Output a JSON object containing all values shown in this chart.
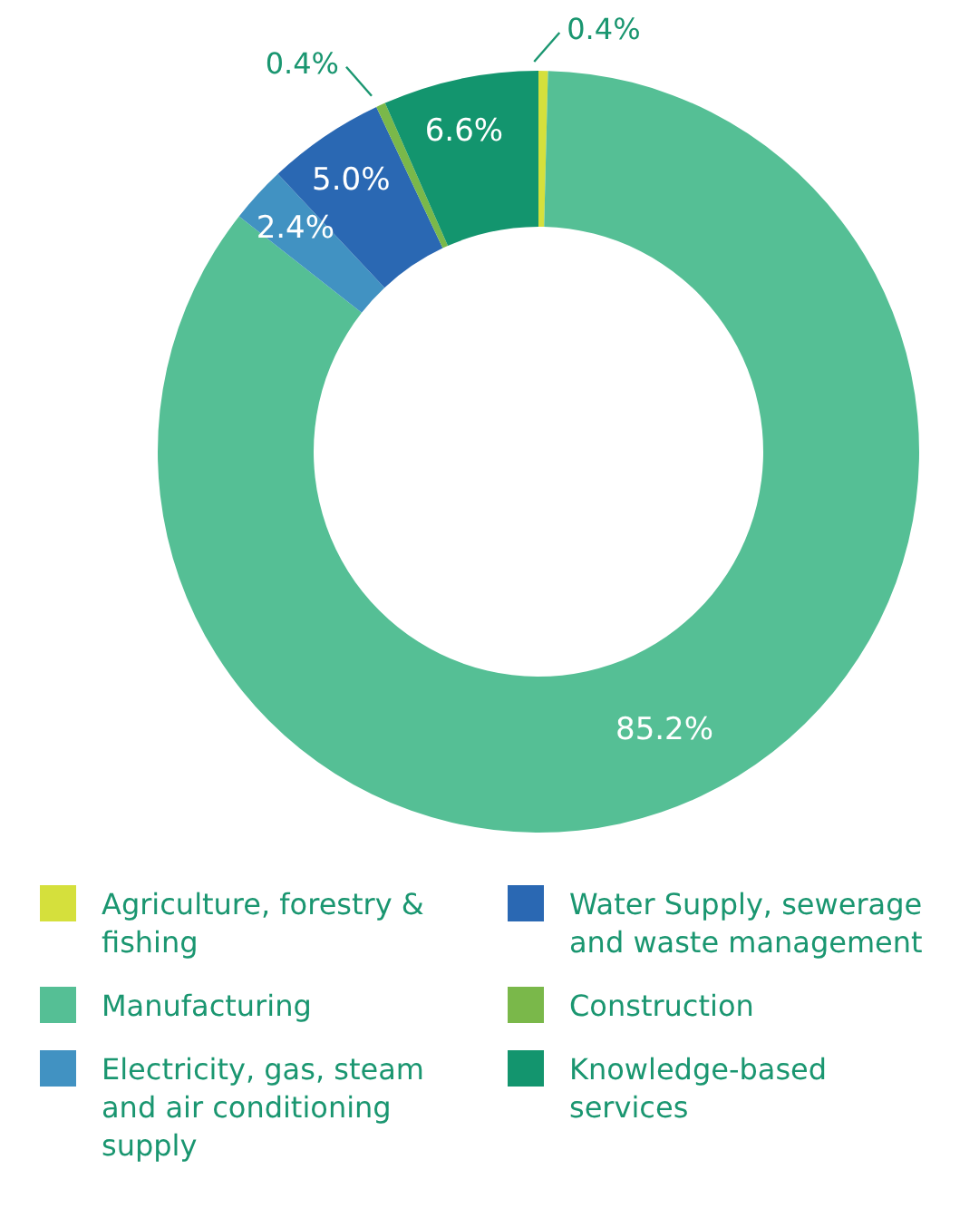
{
  "chart_data": {
    "type": "donut",
    "categories": [
      "Agriculture, forestry & fishing",
      "Manufacturing",
      "Electricity, gas, steam and air conditioning supply",
      "Water Supply, sewerage and waste management",
      "Construction",
      "Knowledge-based services"
    ],
    "values": [
      0.4,
      85.2,
      2.4,
      5.0,
      0.4,
      6.6
    ],
    "colors": [
      "#d5e03c",
      "#55bf95",
      "#4192c2",
      "#2a68b3",
      "#7ab84a",
      "#13956e"
    ],
    "value_labels": [
      "0.4%",
      "85.2%",
      "2.4%",
      "5.0%",
      "0.4%",
      "6.6%"
    ],
    "legend": "bottom"
  }
}
